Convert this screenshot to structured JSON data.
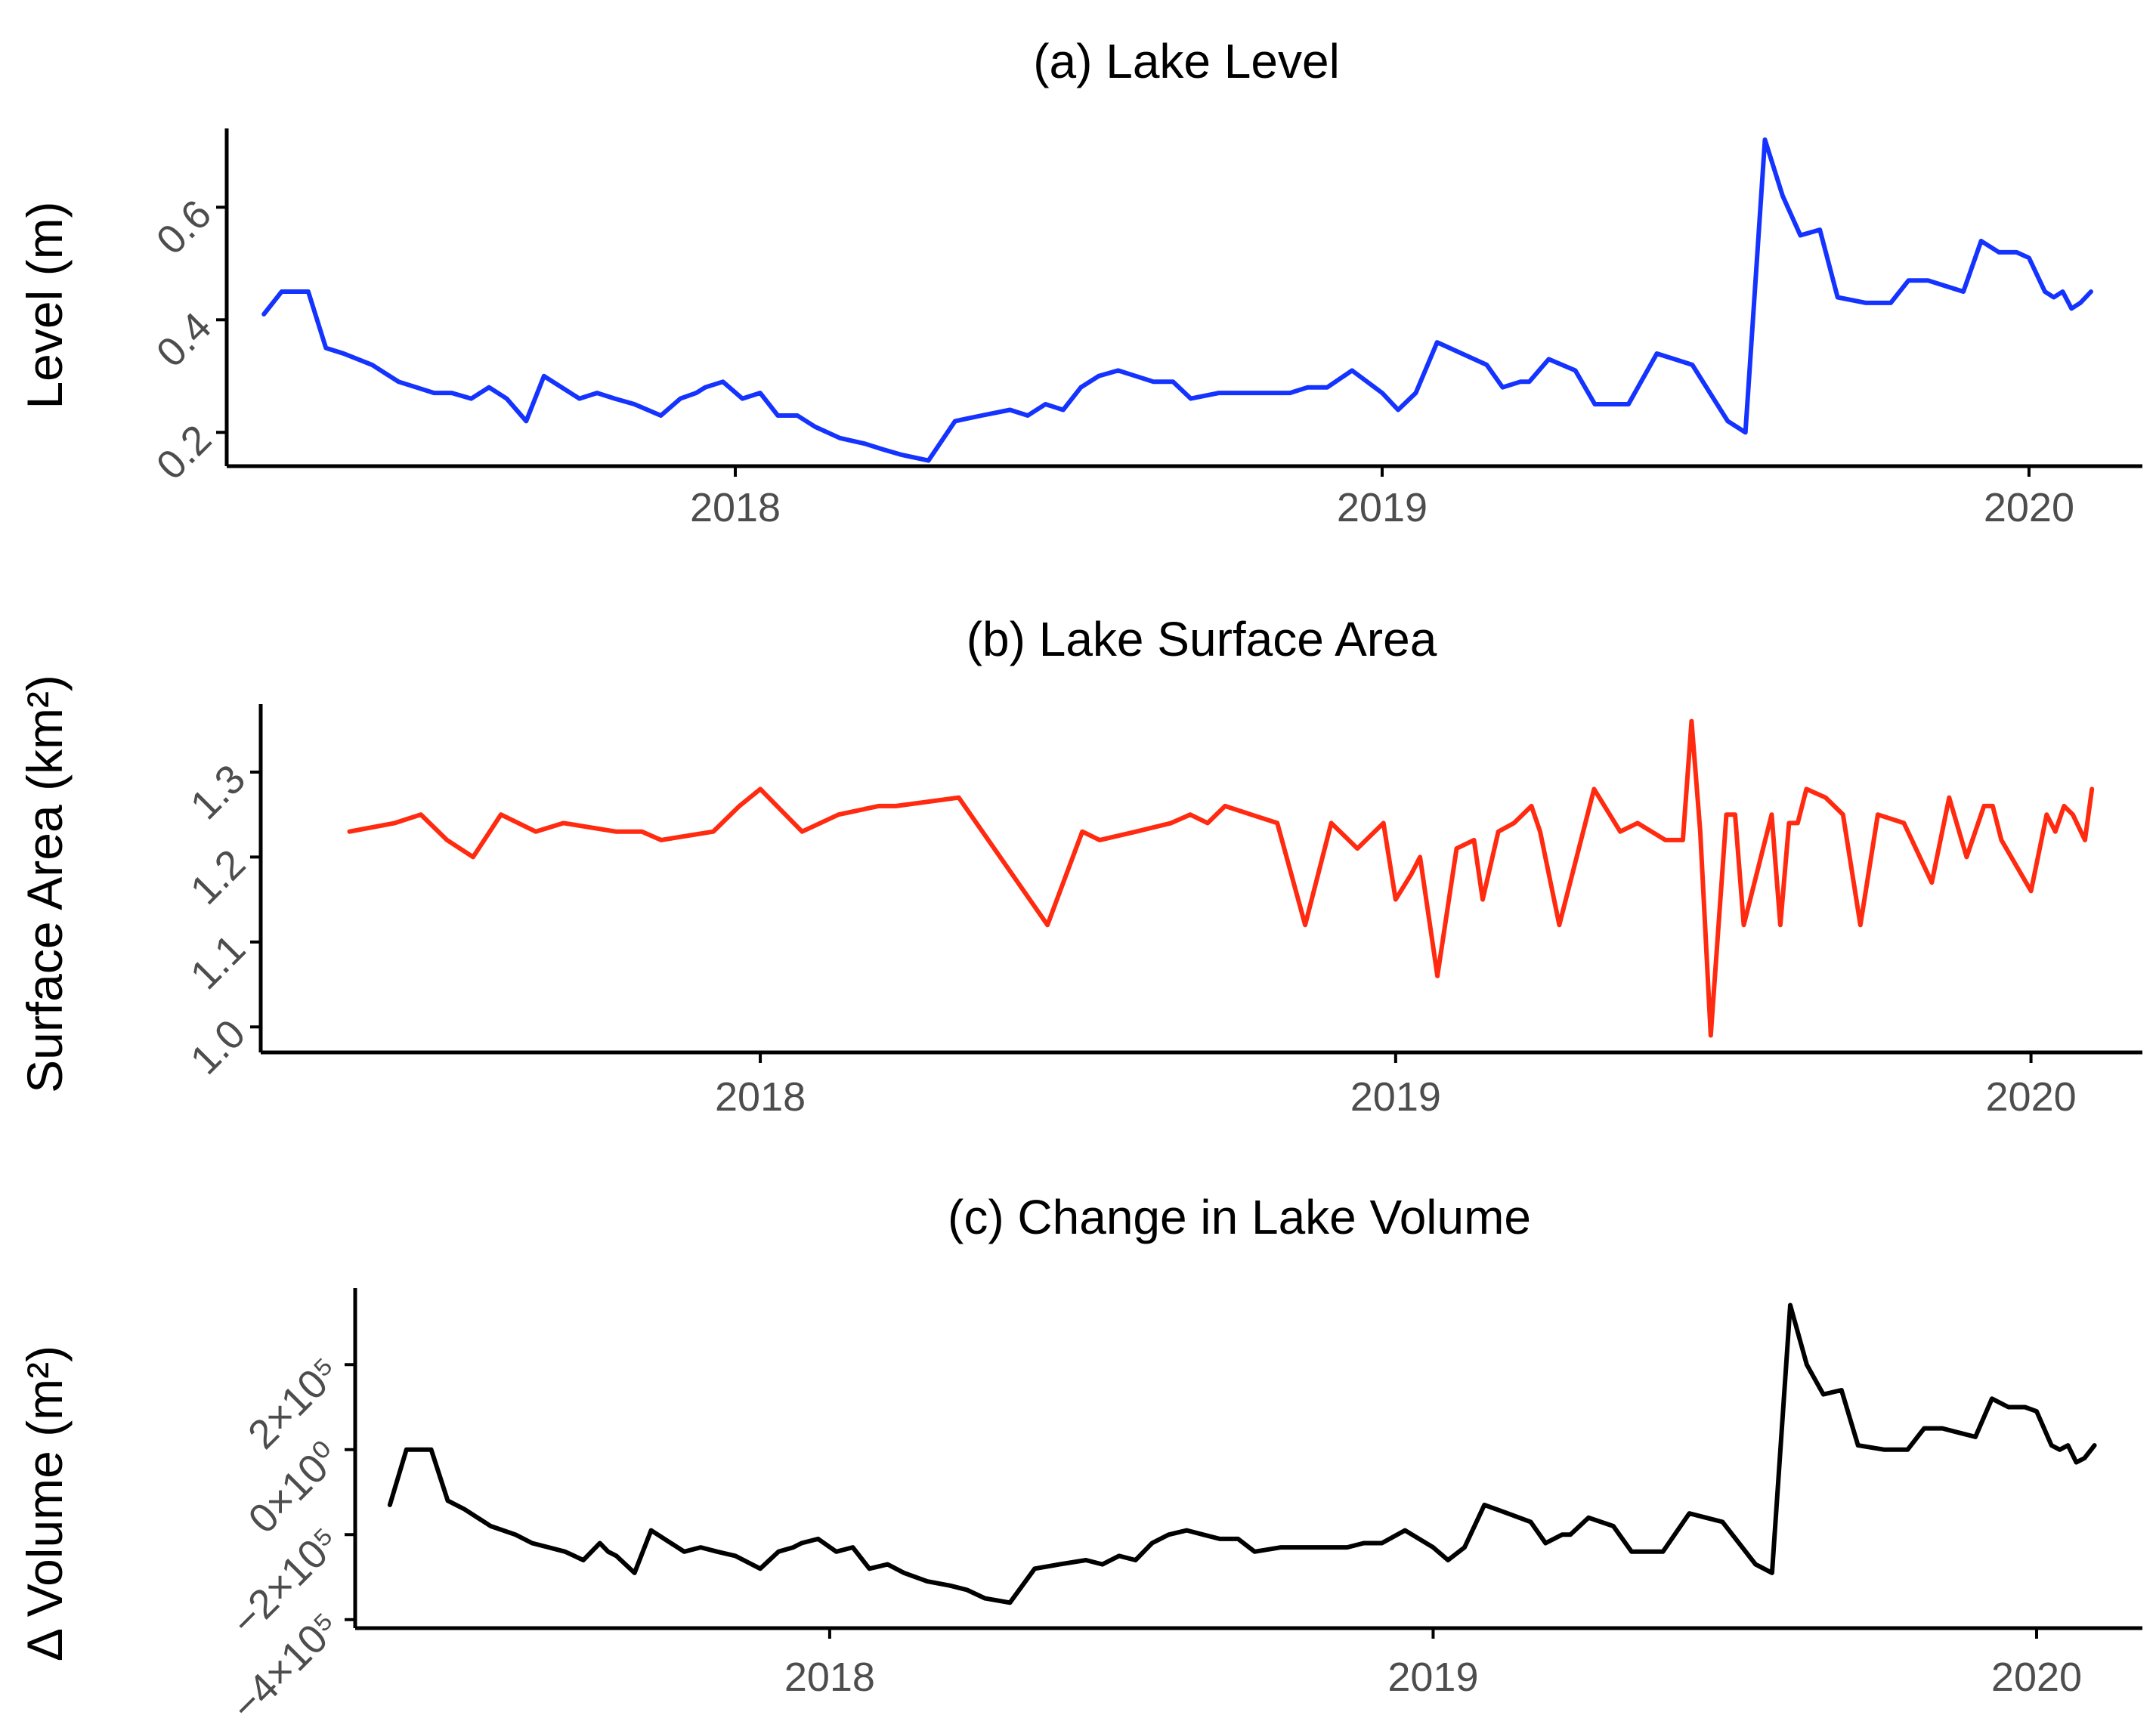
{
  "colors": {
    "level": "#1533ff",
    "area": "#ff2a0f",
    "volume": "#000000",
    "tick_text": "#4d4d4d"
  },
  "chart_data": [
    {
      "type": "line",
      "title": "(a) Lake Level",
      "xlabel": "",
      "ylabel": "Level (m)",
      "xlim": [
        "2017-03-20",
        "2020-03-05"
      ],
      "ylim": [
        0.14,
        0.74
      ],
      "xticks": [
        "2018-01-01",
        "2019-01-01",
        "2020-01-01"
      ],
      "xtick_labels": [
        "2018",
        "2019",
        "2020"
      ],
      "yticks": [
        0.2,
        0.4,
        0.6
      ],
      "ytick_labels": [
        "0.2",
        "0.4",
        "0.6"
      ],
      "series": [
        {
          "x": [
            "2017-04-10",
            "2017-04-20",
            "2017-05-05",
            "2017-05-15",
            "2017-05-25",
            "2017-06-10",
            "2017-06-25",
            "2017-07-05",
            "2017-07-15",
            "2017-07-25",
            "2017-08-05",
            "2017-08-15",
            "2017-08-20",
            "2017-08-25",
            "2017-09-05",
            "2017-09-15",
            "2017-10-05",
            "2017-10-15",
            "2017-10-25",
            "2017-11-05",
            "2017-11-20",
            "2017-12-01",
            "2017-12-10",
            "2017-12-15",
            "2017-12-25",
            "2018-01-05",
            "2018-01-15",
            "2018-01-25",
            "2018-02-05",
            "2018-02-15",
            "2018-03-01",
            "2018-03-15",
            "2018-03-25",
            "2018-04-05",
            "2018-04-20",
            "2018-05-05",
            "2018-05-20",
            "2018-06-05",
            "2018-06-15",
            "2018-06-25",
            "2018-07-05",
            "2018-07-15",
            "2018-07-25",
            "2018-08-05",
            "2018-08-15",
            "2018-08-25",
            "2018-09-05",
            "2018-09-15",
            "2018-10-01",
            "2018-10-15",
            "2018-10-30",
            "2018-11-10",
            "2018-11-20",
            "2018-12-01",
            "2018-12-15",
            "2019-01-01",
            "2019-01-10",
            "2019-01-20",
            "2019-02-01",
            "2019-02-15",
            "2019-03-01",
            "2019-03-10",
            "2019-03-20",
            "2019-03-25",
            "2019-04-05",
            "2019-04-20",
            "2019-05-01",
            "2019-05-10",
            "2019-05-20",
            "2019-06-05",
            "2019-06-15",
            "2019-06-25",
            "2019-07-05",
            "2019-07-15",
            "2019-07-25",
            "2019-08-05",
            "2019-08-15",
            "2019-08-25",
            "2019-09-05",
            "2019-09-15",
            "2019-10-01",
            "2019-10-15",
            "2019-10-25",
            "2019-11-05",
            "2019-11-15",
            "2019-11-25",
            "2019-12-05",
            "2019-12-15",
            "2019-12-25",
            "2020-01-01",
            "2020-01-10",
            "2020-01-15",
            "2020-01-20",
            "2020-01-25",
            "2020-01-30",
            "2020-02-05"
          ],
          "y": [
            0.41,
            0.45,
            0.45,
            0.35,
            0.34,
            0.32,
            0.29,
            0.28,
            0.27,
            0.27,
            0.26,
            0.28,
            0.27,
            0.26,
            0.22,
            0.3,
            0.26,
            0.27,
            0.26,
            0.25,
            0.23,
            0.26,
            0.27,
            0.28,
            0.29,
            0.26,
            0.27,
            0.23,
            0.23,
            0.21,
            0.19,
            0.18,
            0.17,
            0.16,
            0.15,
            0.22,
            0.23,
            0.24,
            0.23,
            0.25,
            0.24,
            0.28,
            0.3,
            0.31,
            0.3,
            0.29,
            0.29,
            0.26,
            0.27,
            0.27,
            0.27,
            0.27,
            0.28,
            0.28,
            0.31,
            0.27,
            0.24,
            0.27,
            0.36,
            0.34,
            0.32,
            0.28,
            0.29,
            0.29,
            0.33,
            0.31,
            0.25,
            0.25,
            0.25,
            0.34,
            0.33,
            0.32,
            0.27,
            0.22,
            0.2,
            0.72,
            0.62,
            0.55,
            0.56,
            0.44,
            0.43,
            0.43,
            0.47,
            0.47,
            0.46,
            0.45,
            0.54,
            0.52,
            0.52,
            0.51,
            0.45,
            0.44,
            0.45,
            0.42,
            0.43,
            0.45
          ]
        }
      ]
    },
    {
      "type": "line",
      "title": "(b) Lake Surface Area",
      "xlabel": "",
      "ylabel": "Surface Area (km²)",
      "xlim": [
        "2017-03-20",
        "2020-03-05"
      ],
      "ylim": [
        0.97,
        1.38
      ],
      "xticks": [
        "2018-01-01",
        "2019-01-01",
        "2020-01-01"
      ],
      "xtick_labels": [
        "2018",
        "2019",
        "2020"
      ],
      "yticks": [
        1.0,
        1.1,
        1.2,
        1.3
      ],
      "ytick_labels": [
        "1.0",
        "1.1",
        "1.2",
        "1.3"
      ],
      "series": [
        {
          "x": [
            "2017-05-10",
            "2017-06-05",
            "2017-06-20",
            "2017-07-05",
            "2017-07-20",
            "2017-08-05",
            "2017-08-15",
            "2017-08-25",
            "2017-09-10",
            "2017-10-10",
            "2017-10-25",
            "2017-11-05",
            "2017-12-05",
            "2017-12-20",
            "2018-01-01",
            "2018-01-25",
            "2018-02-15",
            "2018-03-10",
            "2018-03-20",
            "2018-04-25",
            "2018-06-15",
            "2018-07-05",
            "2018-07-15",
            "2018-08-05",
            "2018-08-25",
            "2018-09-05",
            "2018-09-15",
            "2018-09-25",
            "2018-10-10",
            "2018-10-25",
            "2018-11-10",
            "2018-11-25",
            "2018-12-10",
            "2018-12-25",
            "2019-01-01",
            "2019-01-10",
            "2019-01-15",
            "2019-01-25",
            "2019-02-05",
            "2019-02-15",
            "2019-02-20",
            "2019-03-01",
            "2019-03-10",
            "2019-03-20",
            "2019-03-25",
            "2019-04-05",
            "2019-04-15",
            "2019-04-25",
            "2019-05-10",
            "2019-05-20",
            "2019-06-05",
            "2019-06-15",
            "2019-06-20",
            "2019-06-25",
            "2019-07-01",
            "2019-07-10",
            "2019-07-15",
            "2019-07-20",
            "2019-08-05",
            "2019-08-10",
            "2019-08-15",
            "2019-08-20",
            "2019-08-25",
            "2019-09-05",
            "2019-09-15",
            "2019-09-25",
            "2019-10-05",
            "2019-10-20",
            "2019-11-05",
            "2019-11-15",
            "2019-11-25",
            "2019-12-05",
            "2019-12-10",
            "2019-12-15",
            "2020-01-01",
            "2020-01-10",
            "2020-01-15",
            "2020-01-20",
            "2020-01-25",
            "2020-02-01",
            "2020-02-05"
          ],
          "y": [
            1.23,
            1.24,
            1.25,
            1.22,
            1.2,
            1.25,
            1.24,
            1.23,
            1.24,
            1.23,
            1.23,
            1.22,
            1.23,
            1.26,
            1.28,
            1.23,
            1.25,
            1.26,
            1.26,
            1.27,
            1.12,
            1.23,
            1.22,
            1.23,
            1.24,
            1.25,
            1.24,
            1.26,
            1.25,
            1.24,
            1.12,
            1.24,
            1.21,
            1.24,
            1.15,
            1.18,
            1.2,
            1.06,
            1.21,
            1.22,
            1.15,
            1.23,
            1.24,
            1.26,
            1.23,
            1.12,
            1.2,
            1.28,
            1.23,
            1.24,
            1.22,
            1.22,
            1.36,
            1.23,
            0.99,
            1.25,
            1.25,
            1.12,
            1.25,
            1.12,
            1.24,
            1.24,
            1.28,
            1.27,
            1.25,
            1.12,
            1.25,
            1.24,
            1.17,
            1.27,
            1.2,
            1.26,
            1.26,
            1.22,
            1.16,
            1.25,
            1.23,
            1.26,
            1.25,
            1.22,
            1.28
          ]
        }
      ]
    },
    {
      "type": "line",
      "title": "(c) Change in Lake Volume",
      "xlabel": "",
      "ylabel": "Δ Volume (m²)",
      "xlim": [
        "2017-03-20",
        "2020-03-05"
      ],
      "ylim": [
        -420000,
        380000
      ],
      "xticks": [
        "2018-01-01",
        "2019-01-01",
        "2020-01-01"
      ],
      "xtick_labels": [
        "2018",
        "2019",
        "2020"
      ],
      "yticks": [
        -400000,
        -200000,
        0,
        200000
      ],
      "ytick_labels": [
        "−4×10⁵",
        "−2×10⁵",
        "0×10⁰",
        "2×10⁵"
      ],
      "series": [
        {
          "x": [
            "2017-04-10",
            "2017-04-20",
            "2017-05-05",
            "2017-05-15",
            "2017-05-25",
            "2017-06-10",
            "2017-06-25",
            "2017-07-05",
            "2017-07-15",
            "2017-07-25",
            "2017-08-05",
            "2017-08-15",
            "2017-08-20",
            "2017-08-25",
            "2017-09-05",
            "2017-09-15",
            "2017-10-05",
            "2017-10-15",
            "2017-10-25",
            "2017-11-05",
            "2017-11-20",
            "2017-12-01",
            "2017-12-10",
            "2017-12-15",
            "2017-12-25",
            "2018-01-05",
            "2018-01-15",
            "2018-01-25",
            "2018-02-05",
            "2018-02-15",
            "2018-03-01",
            "2018-03-15",
            "2018-03-25",
            "2018-04-05",
            "2018-04-20",
            "2018-05-05",
            "2018-05-20",
            "2018-06-05",
            "2018-06-15",
            "2018-06-25",
            "2018-07-05",
            "2018-07-15",
            "2018-07-25",
            "2018-08-05",
            "2018-08-15",
            "2018-08-25",
            "2018-09-05",
            "2018-09-15",
            "2018-10-01",
            "2018-10-15",
            "2018-10-30",
            "2018-11-10",
            "2018-11-20",
            "2018-12-01",
            "2018-12-15",
            "2019-01-01",
            "2019-01-10",
            "2019-01-20",
            "2019-02-01",
            "2019-02-15",
            "2019-03-01",
            "2019-03-10",
            "2019-03-20",
            "2019-03-25",
            "2019-04-05",
            "2019-04-20",
            "2019-05-01",
            "2019-05-10",
            "2019-05-20",
            "2019-06-05",
            "2019-06-15",
            "2019-06-25",
            "2019-07-05",
            "2019-07-15",
            "2019-07-25",
            "2019-08-05",
            "2019-08-15",
            "2019-08-25",
            "2019-09-05",
            "2019-09-15",
            "2019-10-01",
            "2019-10-15",
            "2019-10-25",
            "2019-11-05",
            "2019-11-15",
            "2019-11-25",
            "2019-12-05",
            "2019-12-15",
            "2019-12-25",
            "2020-01-01",
            "2020-01-10",
            "2020-01-15",
            "2020-01-20",
            "2020-01-25",
            "2020-01-30",
            "2020-02-05"
          ],
          "y": [
            -130000,
            0,
            0,
            -120000,
            -140000,
            -180000,
            -200000,
            -220000,
            -230000,
            -240000,
            -260000,
            -220000,
            -240000,
            -250000,
            -290000,
            -190000,
            -240000,
            -230000,
            -240000,
            -250000,
            -280000,
            -240000,
            -230000,
            -220000,
            -210000,
            -240000,
            -230000,
            -280000,
            -270000,
            -290000,
            -310000,
            -320000,
            -330000,
            -350000,
            -360000,
            -280000,
            -270000,
            -260000,
            -270000,
            -250000,
            -260000,
            -220000,
            -200000,
            -190000,
            -200000,
            -210000,
            -210000,
            -240000,
            -230000,
            -230000,
            -230000,
            -230000,
            -220000,
            -220000,
            -190000,
            -230000,
            -260000,
            -230000,
            -130000,
            -150000,
            -170000,
            -220000,
            -200000,
            -200000,
            -160000,
            -180000,
            -240000,
            -240000,
            -240000,
            -150000,
            -160000,
            -170000,
            -220000,
            -270000,
            -290000,
            340000,
            200000,
            130000,
            140000,
            10000,
            0,
            0,
            50000,
            50000,
            40000,
            30000,
            120000,
            100000,
            100000,
            90000,
            10000,
            0,
            10000,
            -30000,
            -20000,
            10000
          ]
        }
      ]
    }
  ]
}
